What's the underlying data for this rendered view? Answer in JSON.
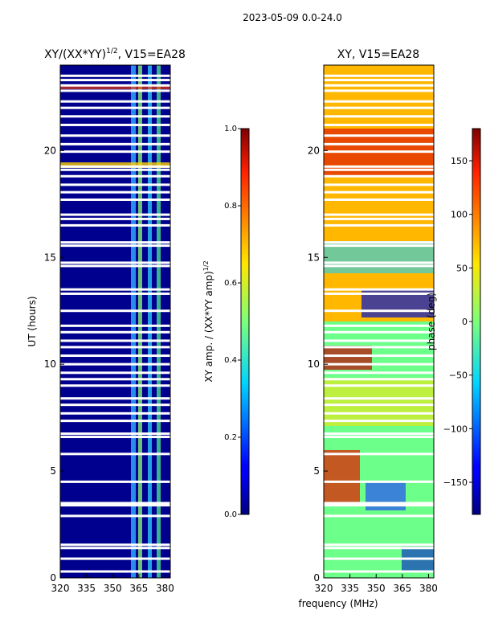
{
  "suptitle": "2023-05-09 0.0-24.0",
  "shared_xlabel": "frequency (MHz)",
  "chart_data": [
    {
      "type": "heatmap",
      "title": "XY/(XX*YY)",
      "title_sup": "1/2",
      "title_suffix": ", V15=EA28",
      "xlabel": "frequency (MHz)",
      "ylabel": "UT (hours)",
      "xlim": [
        320,
        383
      ],
      "ylim": [
        0,
        24
      ],
      "xticks": [
        320,
        335,
        350,
        365,
        380
      ],
      "yticks": [
        0,
        5,
        10,
        15,
        20
      ],
      "colormap": "jet",
      "colorbar": {
        "label": "XY amp. / (XX*YY amp)",
        "label_sup": "1/2",
        "range": [
          0.0,
          1.0
        ],
        "ticks": [
          "0.0",
          "0.2",
          "0.4",
          "0.6",
          "0.8",
          "1.0"
        ]
      }
    },
    {
      "type": "heatmap",
      "title": "XY, V15=EA28",
      "xlabel": "frequency (MHz)",
      "ylabel": "",
      "xlim": [
        320,
        383
      ],
      "ylim": [
        0,
        24
      ],
      "xticks": [
        320,
        335,
        350,
        365,
        380
      ],
      "yticks": [
        0,
        5,
        10,
        15,
        20
      ],
      "colormap": "jet",
      "colorbar": {
        "label": "phase (deg)",
        "range": [
          -180,
          180
        ],
        "ticks": [
          "150",
          "100",
          "50",
          "0",
          "−50",
          "−100",
          "−150"
        ],
        "tick_values": [
          150,
          100,
          50,
          0,
          -50,
          -100,
          -150
        ]
      }
    }
  ],
  "flagged_hours": [
    0.3,
    0.9,
    1.4,
    1.55,
    2.9,
    3.4,
    3.5,
    4.5,
    5.8,
    6.6,
    6.75,
    7.35,
    7.7,
    8.1,
    8.4,
    9.0,
    9.3,
    9.6,
    10.0,
    10.4,
    10.8,
    11.1,
    11.5,
    11.8,
    12.5,
    13.3,
    13.5,
    14.6,
    14.75,
    15.55,
    15.7,
    16.5,
    16.8,
    17.0,
    17.7,
    18.05,
    18.4,
    18.8,
    19.1,
    19.25,
    19.95,
    20.3,
    20.7,
    21.2,
    21.6,
    22.0,
    22.3,
    22.8,
    23.05,
    23.3,
    23.5
  ]
}
